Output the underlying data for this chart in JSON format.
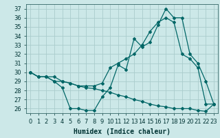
{
  "xlabel": "Humidex (Indice chaleur)",
  "bg_color": "#cce8e8",
  "grid_color": "#aacccc",
  "line_color": "#006666",
  "xlim": [
    -0.5,
    23.5
  ],
  "ylim": [
    25.5,
    37.5
  ],
  "yticks": [
    26,
    27,
    28,
    29,
    30,
    31,
    32,
    33,
    34,
    35,
    36,
    37
  ],
  "xticks": [
    0,
    1,
    2,
    3,
    4,
    5,
    6,
    7,
    8,
    9,
    10,
    11,
    12,
    13,
    14,
    15,
    16,
    17,
    18,
    19,
    20,
    21,
    22,
    23
  ],
  "line1_x": [
    0,
    1,
    2,
    3,
    4,
    5,
    6,
    7,
    8,
    9,
    10,
    11,
    12,
    13,
    14,
    15,
    16,
    17,
    18,
    19,
    20,
    21,
    22,
    23
  ],
  "line1_y": [
    30.0,
    29.5,
    29.5,
    29.0,
    28.3,
    26.0,
    26.0,
    25.8,
    25.8,
    27.3,
    28.3,
    30.8,
    30.3,
    33.7,
    32.8,
    33.3,
    35.2,
    37.0,
    36.0,
    36.0,
    32.0,
    31.0,
    29.0,
    26.5
  ],
  "line2_x": [
    0,
    1,
    2,
    3,
    4,
    5,
    6,
    7,
    8,
    9,
    10,
    11,
    12,
    13,
    14,
    15,
    16,
    17,
    18,
    19,
    20,
    21,
    22,
    23
  ],
  "line2_y": [
    30.0,
    29.5,
    29.5,
    29.5,
    29.0,
    28.8,
    28.5,
    28.5,
    28.5,
    28.8,
    30.5,
    31.0,
    31.5,
    32.0,
    33.0,
    34.5,
    35.5,
    36.0,
    35.5,
    32.0,
    31.5,
    30.5,
    26.5,
    26.5
  ],
  "line3_x": [
    0,
    1,
    2,
    3,
    4,
    5,
    6,
    7,
    8,
    9,
    10,
    11,
    12,
    13,
    14,
    15,
    16,
    17,
    18,
    19,
    20,
    21,
    22,
    23
  ],
  "line3_y": [
    30.0,
    29.5,
    29.5,
    29.0,
    29.0,
    28.8,
    28.5,
    28.3,
    28.2,
    28.0,
    27.8,
    27.5,
    27.3,
    27.0,
    26.8,
    26.5,
    26.3,
    26.2,
    26.0,
    26.0,
    26.0,
    25.8,
    25.7,
    26.5
  ],
  "tick_fontsize": 6,
  "xlabel_fontsize": 7,
  "tick_color": "#003333",
  "spine_color": "#336666"
}
